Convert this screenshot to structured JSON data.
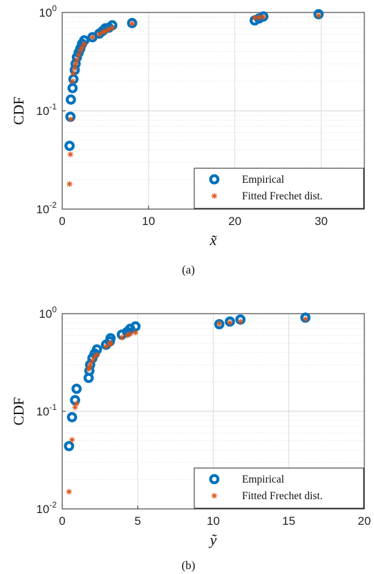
{
  "chart_data": [
    {
      "type": "scatter",
      "caption": "(a)",
      "xlabel": "x̃",
      "ylabel": "CDF",
      "xlim": [
        0,
        35
      ],
      "ylim": [
        0.01,
        1
      ],
      "yscale": "log",
      "grid": true,
      "legend_position": "bottom-right",
      "x_ticks": [
        0,
        10,
        20,
        30
      ],
      "x_tick_labels": [
        "0",
        "10",
        "20",
        "30"
      ],
      "y_ticks": [
        0.01,
        0.1,
        1
      ],
      "y_tick_labels": [
        {
          "base": "10",
          "exp": "-2"
        },
        {
          "base": "10",
          "exp": "-1"
        },
        {
          "base": "10",
          "exp": "0"
        }
      ],
      "series": [
        {
          "name": "Empirical",
          "marker": "circle",
          "color": "#0072BD",
          "x": [
            0.85,
            0.95,
            1.0,
            1.2,
            1.3,
            1.45,
            1.55,
            1.7,
            1.9,
            2.1,
            2.3,
            2.55,
            3.5,
            4.3,
            4.7,
            5.0,
            5.4,
            5.8,
            8.1,
            22.3,
            22.8,
            23.3,
            29.7
          ],
          "y": [
            0.044,
            0.087,
            0.13,
            0.17,
            0.21,
            0.26,
            0.3,
            0.35,
            0.39,
            0.43,
            0.48,
            0.52,
            0.56,
            0.61,
            0.65,
            0.69,
            0.7,
            0.74,
            0.78,
            0.83,
            0.87,
            0.91,
            0.96
          ]
        },
        {
          "name": "Fitted Frechet dist.",
          "marker": "asterisk",
          "color": "#D95319",
          "x": [
            0.85,
            0.95,
            1.0,
            1.2,
            1.3,
            1.45,
            1.55,
            1.7,
            1.9,
            2.1,
            2.3,
            2.55,
            3.5,
            4.3,
            4.7,
            5.0,
            5.4,
            5.8,
            8.1,
            22.3,
            22.8,
            23.3,
            29.7
          ],
          "y": [
            0.018,
            0.036,
            0.082,
            0.2,
            0.24,
            0.27,
            0.3,
            0.33,
            0.37,
            0.41,
            0.44,
            0.48,
            0.56,
            0.6,
            0.63,
            0.65,
            0.67,
            0.7,
            0.77,
            0.88,
            0.89,
            0.9,
            0.93
          ]
        }
      ]
    },
    {
      "type": "scatter",
      "caption": "(b)",
      "xlabel": "ỹ",
      "ylabel": "CDF",
      "xlim": [
        0,
        20
      ],
      "ylim": [
        0.01,
        1
      ],
      "yscale": "log",
      "grid": true,
      "legend_position": "bottom-right",
      "x_ticks": [
        0,
        5,
        10,
        15,
        20
      ],
      "x_tick_labels": [
        "0",
        "5",
        "10",
        "15",
        "20"
      ],
      "y_ticks": [
        0.01,
        0.1,
        1
      ],
      "y_tick_labels": [
        {
          "base": "10",
          "exp": "-2"
        },
        {
          "base": "10",
          "exp": "-1"
        },
        {
          "base": "10",
          "exp": "0"
        }
      ],
      "series": [
        {
          "name": "Empirical",
          "marker": "circle",
          "color": "#0072BD",
          "x": [
            0.45,
            0.65,
            0.85,
            0.95,
            1.75,
            1.8,
            1.85,
            2.0,
            2.15,
            2.3,
            2.9,
            3.15,
            3.2,
            3.95,
            4.3,
            4.5,
            4.85,
            10.4,
            11.1,
            11.8,
            16.1
          ],
          "y": [
            0.044,
            0.087,
            0.13,
            0.17,
            0.22,
            0.26,
            0.3,
            0.35,
            0.39,
            0.43,
            0.48,
            0.52,
            0.56,
            0.61,
            0.65,
            0.7,
            0.74,
            0.78,
            0.83,
            0.87,
            0.91
          ]
        },
        {
          "name": "Fitted Frechet dist.",
          "marker": "asterisk",
          "color": "#D95319",
          "x": [
            0.45,
            0.65,
            0.85,
            0.95,
            1.75,
            1.8,
            1.85,
            2.0,
            2.15,
            2.3,
            2.9,
            3.15,
            3.2,
            3.95,
            4.3,
            4.5,
            4.85,
            10.4,
            11.1,
            11.8,
            16.1
          ],
          "y": [
            0.015,
            0.051,
            0.11,
            0.12,
            0.27,
            0.28,
            0.3,
            0.33,
            0.36,
            0.38,
            0.46,
            0.49,
            0.5,
            0.57,
            0.6,
            0.62,
            0.64,
            0.79,
            0.81,
            0.83,
            0.88
          ]
        }
      ]
    }
  ]
}
